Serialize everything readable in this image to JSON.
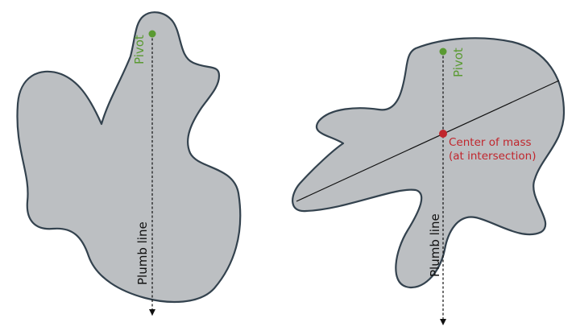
{
  "colors": {
    "shape_fill": "#bcbfc2",
    "shape_stroke": "#33424e",
    "pivot": "#5a9a32",
    "center_of_mass": "#c0262d",
    "line": "#111111"
  },
  "left_panel": {
    "pivot_label": "Pivot",
    "plumb_label": "Plumb line"
  },
  "right_panel": {
    "pivot_label": "Pivot",
    "plumb_label": "Plumb line",
    "center_label_line1": "Center of mass",
    "center_label_line2": "(at intersection)"
  }
}
